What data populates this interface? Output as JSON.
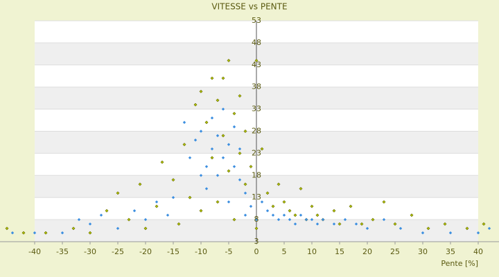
{
  "chart_data": {
    "type": "scatter",
    "title": "VITESSE vs PENTE",
    "x_label": "Pente [%]",
    "xlim": [
      -45,
      43
    ],
    "ylim": [
      3,
      53
    ],
    "xticks": [
      -40,
      -35,
      -30,
      -25,
      -20,
      -15,
      -10,
      -5,
      0,
      5,
      10,
      15,
      20,
      25,
      30,
      35,
      40
    ],
    "yticks": [
      3,
      8,
      13,
      18,
      23,
      28,
      33,
      38,
      43,
      48,
      53
    ],
    "grid": true,
    "series": [
      {
        "color": "#a8b800",
        "x": [
          -45,
          -42,
          -38,
          -33,
          -30,
          -27,
          -25,
          -23,
          -21,
          -20,
          -18,
          -17,
          -15,
          -14,
          -13,
          -12,
          -11,
          -10,
          -10,
          -9,
          -8,
          -8,
          -7,
          -7,
          -6,
          -6,
          -5,
          -5,
          -4,
          -4,
          -3,
          -3,
          -2,
          -2,
          -1,
          0,
          0,
          1,
          2,
          3,
          4,
          5,
          6,
          7,
          8,
          9,
          10,
          11,
          12,
          14,
          15,
          17,
          19,
          21,
          23,
          25,
          28,
          31,
          34,
          38,
          41
        ],
        "values": [
          6,
          5,
          5,
          6,
          5,
          10,
          14,
          8,
          16,
          6,
          11,
          21,
          17,
          7,
          25,
          13,
          34,
          37,
          10,
          30,
          40,
          22,
          35,
          12,
          40,
          27,
          44,
          19,
          32,
          8,
          36,
          23,
          28,
          16,
          20,
          44,
          6,
          24,
          14,
          11,
          16,
          12,
          10,
          9,
          15,
          8,
          11,
          9,
          8,
          10,
          7,
          11,
          7,
          8,
          12,
          7,
          9,
          6,
          7,
          6,
          7
        ]
      },
      {
        "color": "#3d8fe0",
        "x": [
          -44,
          -40,
          -35,
          -32,
          -30,
          -28,
          -25,
          -22,
          -20,
          -18,
          -16,
          -15,
          -13,
          -12,
          -11,
          -10,
          -10,
          -9,
          -9,
          -8,
          -8,
          -7,
          -7,
          -6,
          -6,
          -5,
          -5,
          -4,
          -4,
          -3,
          -3,
          -2,
          -2,
          -1,
          0,
          1,
          2,
          3,
          4,
          5,
          6,
          7,
          8,
          9,
          10,
          11,
          12,
          14,
          16,
          18,
          20,
          23,
          26,
          30,
          35,
          40,
          42
        ],
        "values": [
          5,
          5,
          5,
          8,
          7,
          9,
          6,
          10,
          8,
          12,
          9,
          13,
          30,
          22,
          26,
          18,
          28,
          20,
          15,
          24,
          31,
          27,
          18,
          22,
          33,
          25,
          12,
          20,
          29,
          17,
          24,
          14,
          9,
          11,
          8,
          12,
          10,
          9,
          8,
          9,
          8,
          7,
          9,
          8,
          8,
          7,
          8,
          7,
          8,
          7,
          6,
          8,
          6,
          5,
          5,
          5,
          6
        ]
      }
    ]
  }
}
